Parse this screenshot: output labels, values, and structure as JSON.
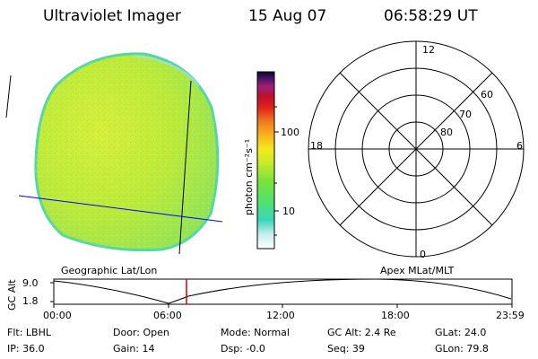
{
  "header": {
    "instrument": "Ultraviolet Imager",
    "date": "15 Aug 07",
    "time": "06:58:29 UT"
  },
  "colorbar": {
    "unit_label": "photon cm⁻²s⁻¹",
    "ticks": [
      "100",
      "10"
    ]
  },
  "polar_plot": {
    "mlt_labels": {
      "top": "12",
      "left": "18",
      "right": "6",
      "bottom": "0"
    },
    "lat_labels": [
      "60",
      "70",
      "80"
    ]
  },
  "footer_labels": {
    "left": "Geographic Lat/Lon",
    "right": "Apex MLat/MLT"
  },
  "altitude_plot": {
    "axis_label": "GC Alt",
    "y_ticks": [
      "9.0",
      "1.8"
    ],
    "x_ticks": [
      "00:00",
      "06:00",
      "12:00",
      "18:00",
      "23:59"
    ]
  },
  "info": {
    "flt": "Flt: LBHL",
    "ip": "IP: 36.0",
    "door": "Door: Open",
    "gain": "Gain: 14",
    "mode": "Mode: Normal",
    "dsp": "Dsp:   -0.0",
    "gcalt": "GC Alt: 2.4 Re",
    "seq": "Seq: 39",
    "glat": "GLat:  24.0",
    "glon": "GLon:  79.8"
  },
  "colors": {
    "disk_main": "#b8ea3c",
    "disk_left": "#d7ef3a",
    "disk_edge": "#55e0a0",
    "geo_line": "#0000ff",
    "current_time_marker": "#cc0000"
  }
}
